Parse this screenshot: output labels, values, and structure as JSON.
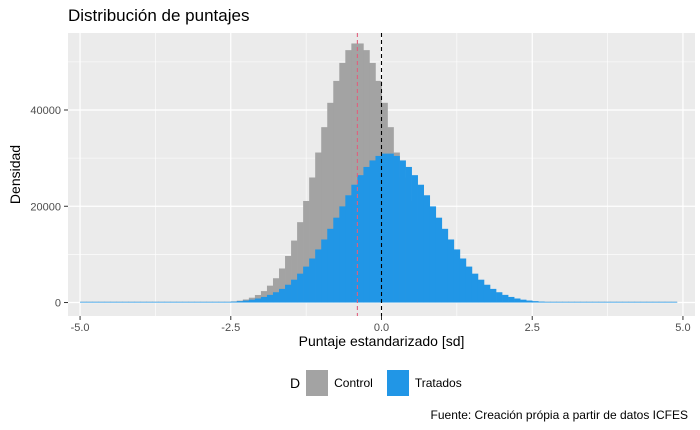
{
  "title": "Distribución de puntajes",
  "caption": "Fuente: Creación própia a partir de datos ICFES",
  "colors": {
    "panel_bg": "#ebebeb",
    "grid": "#ffffff",
    "control": "#a3a3a3",
    "tratados": "#2196e6",
    "mean_control_line": "#e0607e",
    "mean_tratados_line": "#000000"
  },
  "chart_data": {
    "type": "histogram",
    "title": "Distribución de puntajes",
    "xlabel": "Puntaje estandarizado [sd]",
    "ylabel": "Densidad",
    "xlim": [
      -5.2,
      5.2
    ],
    "ylim": [
      -2800,
      56000
    ],
    "x_ticks": [
      -5.0,
      -2.5,
      0.0,
      2.5,
      5.0
    ],
    "x_tick_labels": [
      "-5.0",
      "-2.5",
      "0.0",
      "2.5",
      "5.0"
    ],
    "y_ticks": [
      0,
      20000,
      40000
    ],
    "y_tick_labels": [
      "0",
      "20000",
      "40000"
    ],
    "grid": true,
    "legend": {
      "title": "D",
      "position": "bottom",
      "entries": [
        "Control",
        "Tratados"
      ]
    },
    "bin_width": 0.1,
    "x_range": [
      -5.0,
      4.85
    ],
    "series": [
      {
        "name": "Control",
        "color": "#a3a3a3",
        "distribution": "approx. normal",
        "peak_x": -0.4,
        "peak_y": 54000,
        "sd": 0.62
      },
      {
        "name": "Tratados",
        "color": "#2196e6",
        "distribution": "approx. normal",
        "peak_x": 0.1,
        "peak_y": 31000,
        "sd": 0.8
      }
    ],
    "vlines": [
      {
        "x": -0.4,
        "style": "dashed",
        "color": "#e0607e"
      },
      {
        "x": 0.0,
        "style": "dashed",
        "color": "#000000"
      }
    ]
  }
}
